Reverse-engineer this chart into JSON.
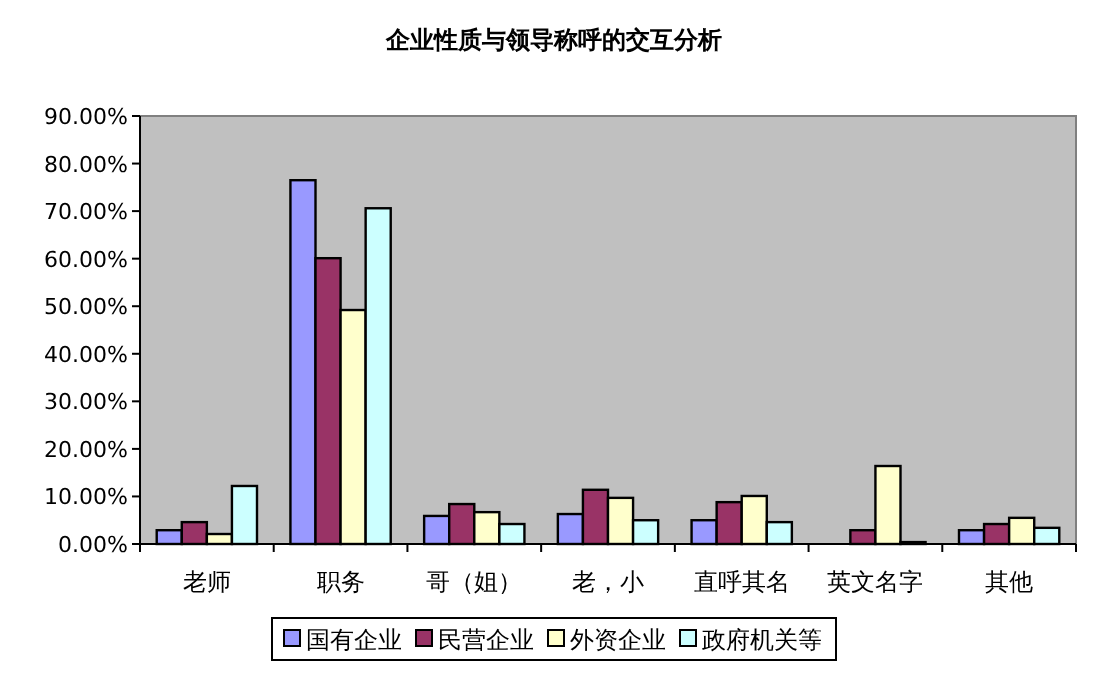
{
  "chart_data": {
    "type": "bar",
    "title": "企业性质与领导称呼的交互分析",
    "categories": [
      "老师",
      "职务",
      "哥（姐）",
      "老，小",
      "直呼其名",
      "英文名字",
      "其他"
    ],
    "series": [
      {
        "name": "国有企业",
        "color": "#9999ff",
        "values": [
          2.9,
          76.5,
          5.9,
          6.3,
          5.0,
          0,
          2.9
        ]
      },
      {
        "name": "民营企业",
        "color": "#993366",
        "values": [
          4.6,
          60.1,
          8.4,
          11.4,
          8.8,
          2.9,
          4.2
        ]
      },
      {
        "name": "外资企业",
        "color": "#ffffcc",
        "values": [
          2.1,
          49.2,
          6.7,
          9.7,
          10.1,
          16.4,
          5.5
        ]
      },
      {
        "name": "政府机关等",
        "color": "#ccffff",
        "values": [
          12.2,
          70.6,
          4.2,
          5.0,
          4.6,
          0.4,
          3.4
        ]
      }
    ],
    "ylim": [
      0,
      90
    ],
    "yticks": [
      {
        "value": 0,
        "label": "0.00%"
      },
      {
        "value": 10,
        "label": "10.00%"
      },
      {
        "value": 20,
        "label": "20.00%"
      },
      {
        "value": 30,
        "label": "30.00%"
      },
      {
        "value": 40,
        "label": "40.00%"
      },
      {
        "value": 50,
        "label": "50.00%"
      },
      {
        "value": 60,
        "label": "60.00%"
      },
      {
        "value": 70,
        "label": "70.00%"
      },
      {
        "value": 80,
        "label": "80.00%"
      },
      {
        "value": 90,
        "label": "90.00%"
      }
    ],
    "legend": "bottom"
  }
}
